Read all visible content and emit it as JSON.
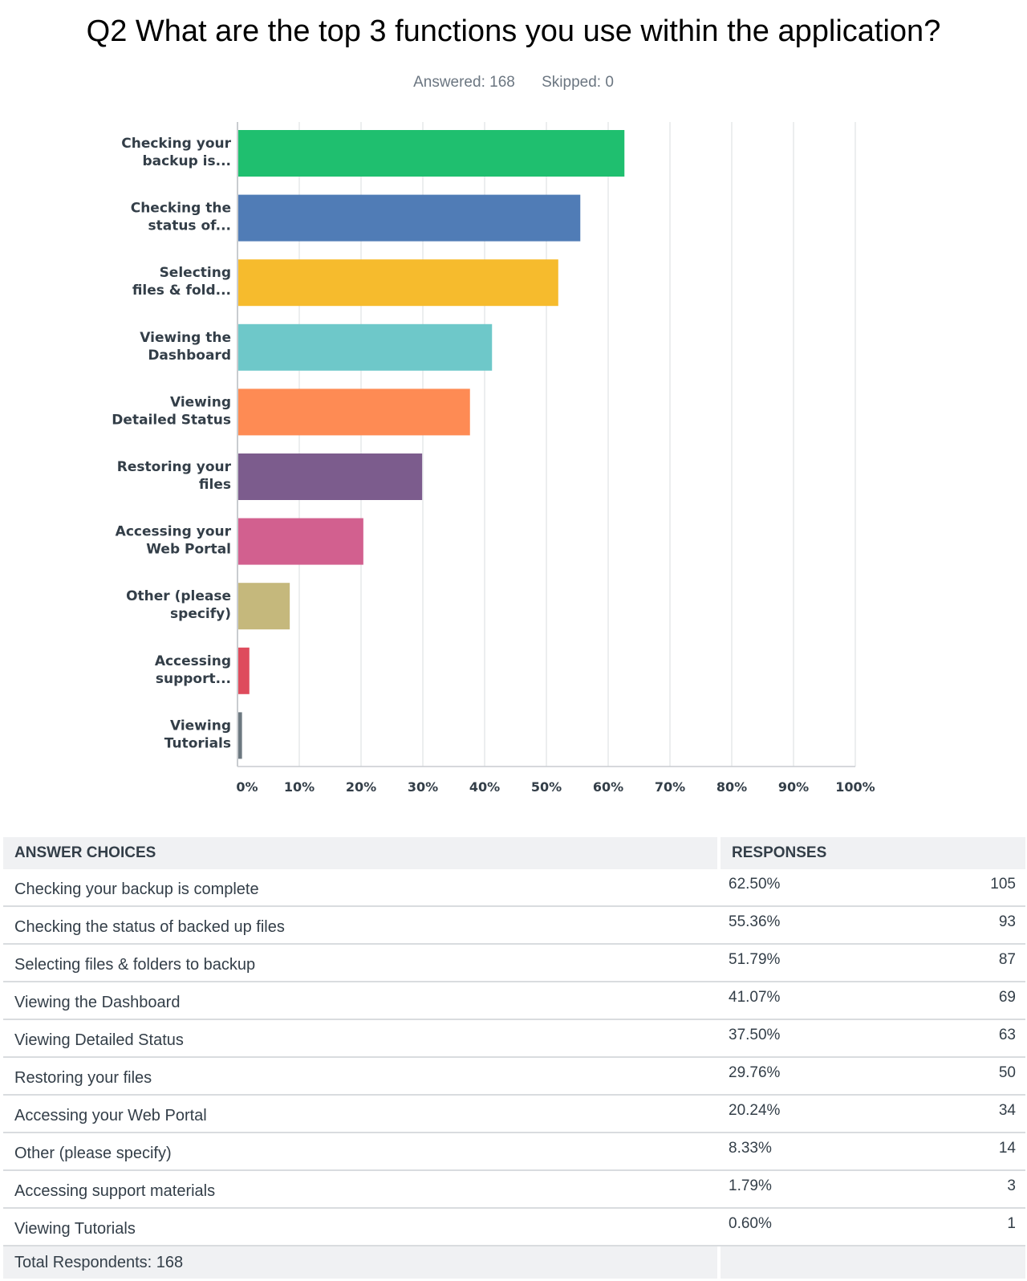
{
  "header": {
    "title": "Q2 What are the top 3 functions you use within the application?",
    "answered": "Answered: 168",
    "skipped": "Skipped: 0"
  },
  "chart_data": {
    "type": "bar",
    "orientation": "horizontal",
    "categories": [
      [
        "Checking your",
        "backup is..."
      ],
      [
        "Checking the",
        "status of..."
      ],
      [
        "Selecting",
        "files & fold..."
      ],
      [
        "Viewing the",
        "Dashboard"
      ],
      [
        "Viewing",
        "Detailed Status"
      ],
      [
        "Restoring your",
        "files"
      ],
      [
        "Accessing your",
        "Web Portal"
      ],
      [
        "Other (please",
        "specify)"
      ],
      [
        "Accessing",
        "support..."
      ],
      [
        "Viewing",
        "Tutorials"
      ]
    ],
    "values": [
      62.5,
      55.36,
      51.79,
      41.07,
      37.5,
      29.76,
      20.24,
      8.33,
      1.79,
      0.6
    ],
    "colors": [
      "#1fbf6f",
      "#507cb6",
      "#f6bb2d",
      "#6ec8c9",
      "#fe8b54",
      "#7c5c8d",
      "#d2608f",
      "#c5b87c",
      "#de4b5c",
      "#6c7880"
    ],
    "xlim": [
      0,
      100
    ],
    "ticks": [
      "0%",
      "10%",
      "20%",
      "30%",
      "40%",
      "50%",
      "60%",
      "70%",
      "80%",
      "90%",
      "100%"
    ],
    "grid": true
  },
  "table": {
    "col_choices": "ANSWER CHOICES",
    "col_responses": "RESPONSES",
    "rows": [
      {
        "choice": "Checking your backup is complete",
        "pct": "62.50%",
        "count": "105"
      },
      {
        "choice": "Checking the status of backed up files",
        "pct": "55.36%",
        "count": "93"
      },
      {
        "choice": "Selecting files & folders to backup",
        "pct": "51.79%",
        "count": "87"
      },
      {
        "choice": "Viewing the Dashboard",
        "pct": "41.07%",
        "count": "69"
      },
      {
        "choice": "Viewing Detailed Status",
        "pct": "37.50%",
        "count": "63"
      },
      {
        "choice": "Restoring your files",
        "pct": "29.76%",
        "count": "50"
      },
      {
        "choice": "Accessing your Web Portal",
        "pct": "20.24%",
        "count": "34"
      },
      {
        "choice": "Other (please specify)",
        "pct": "8.33%",
        "count": "14"
      },
      {
        "choice": "Accessing support materials",
        "pct": "1.79%",
        "count": "3"
      },
      {
        "choice": "Viewing Tutorials",
        "pct": "0.60%",
        "count": "1"
      }
    ],
    "total": "Total Respondents: 168"
  }
}
